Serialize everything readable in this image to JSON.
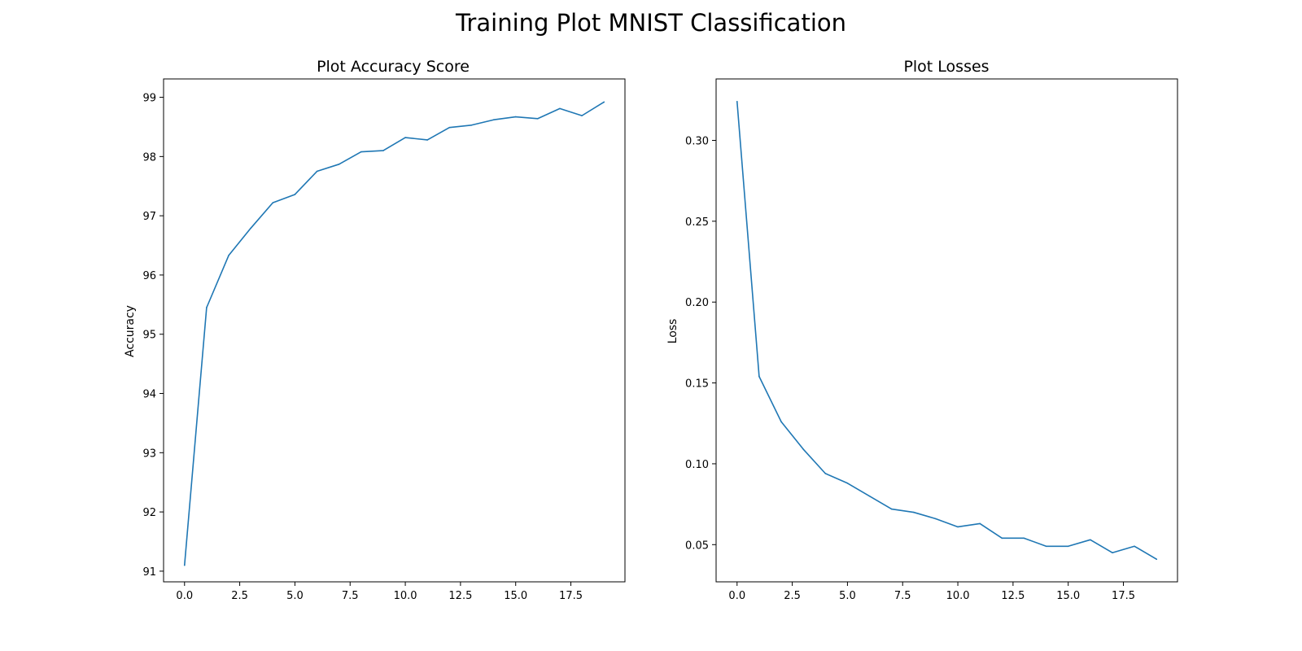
{
  "figure": {
    "title": "Training Plot MNIST Classification"
  },
  "chart_data": [
    {
      "type": "line",
      "title": "Plot Accuracy Score",
      "xlabel": "",
      "ylabel": "Accuracy",
      "x": [
        0,
        1,
        2,
        3,
        4,
        5,
        6,
        7,
        8,
        9,
        10,
        11,
        12,
        13,
        14,
        15,
        16,
        17,
        18,
        19
      ],
      "series": [
        {
          "color": "#1f77b4",
          "values": [
            91.1,
            95.45,
            96.33,
            96.79,
            97.22,
            97.36,
            97.75,
            97.87,
            98.08,
            98.1,
            98.32,
            98.28,
            98.49,
            98.53,
            98.62,
            98.67,
            98.64,
            98.81,
            98.69,
            98.92
          ]
        }
      ],
      "xlim": [
        -0.95,
        19.95
      ],
      "ylim": [
        90.82,
        99.31
      ],
      "xticks": [
        0.0,
        2.5,
        5.0,
        7.5,
        10.0,
        12.5,
        15.0,
        17.5
      ],
      "xtick_labels": [
        "0.0",
        "2.5",
        "5.0",
        "7.5",
        "10.0",
        "12.5",
        "15.0",
        "17.5"
      ],
      "yticks": [
        91,
        92,
        93,
        94,
        95,
        96,
        97,
        98,
        99
      ],
      "ytick_labels": [
        "91",
        "92",
        "93",
        "94",
        "95",
        "96",
        "97",
        "98",
        "99"
      ],
      "grid": false,
      "legend": null
    },
    {
      "type": "line",
      "title": "Plot Losses",
      "xlabel": "",
      "ylabel": "Loss",
      "x": [
        0,
        1,
        2,
        3,
        4,
        5,
        6,
        7,
        8,
        9,
        10,
        11,
        12,
        13,
        14,
        15,
        16,
        17,
        18,
        19
      ],
      "series": [
        {
          "color": "#1f77b4",
          "values": [
            0.324,
            0.154,
            0.126,
            0.109,
            0.094,
            0.088,
            0.08,
            0.072,
            0.07,
            0.066,
            0.061,
            0.063,
            0.054,
            0.054,
            0.049,
            0.049,
            0.053,
            0.045,
            0.049,
            0.041
          ]
        }
      ],
      "xlim": [
        -0.95,
        19.95
      ],
      "ylim": [
        0.027,
        0.338
      ],
      "xticks": [
        0.0,
        2.5,
        5.0,
        7.5,
        10.0,
        12.5,
        15.0,
        17.5
      ],
      "xtick_labels": [
        "0.0",
        "2.5",
        "5.0",
        "7.5",
        "10.0",
        "12.5",
        "15.0",
        "17.5"
      ],
      "yticks": [
        0.05,
        0.1,
        0.15,
        0.2,
        0.25,
        0.3
      ],
      "ytick_labels": [
        "0.05",
        "0.10",
        "0.15",
        "0.20",
        "0.25",
        "0.30"
      ],
      "grid": false,
      "legend": null
    }
  ]
}
